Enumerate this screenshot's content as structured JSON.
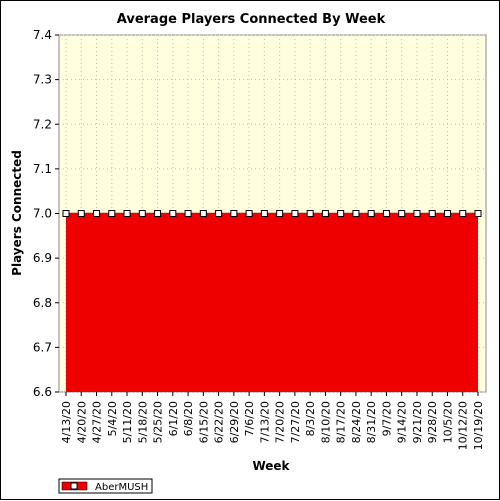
{
  "chart_data": {
    "type": "area",
    "title": "Average Players Connected By Week",
    "xlabel": "Week",
    "ylabel": "Players Connected",
    "ylim": [
      6.6,
      7.4
    ],
    "yticks": [
      "6.6",
      "6.7",
      "6.8",
      "6.9",
      "7.0",
      "7.1",
      "7.2",
      "7.3",
      "7.4"
    ],
    "grid": true,
    "legend_position": "bottom-left",
    "colors": {
      "plot_background": "#ffffe0",
      "fill": "#ee0000",
      "line": "#ee0000",
      "grid": "#bdbdbd"
    },
    "categories": [
      "4/13/20",
      "4/20/20",
      "4/27/20",
      "5/4/20",
      "5/11/20",
      "5/18/20",
      "5/25/20",
      "6/1/20",
      "6/8/20",
      "6/15/20",
      "6/22/20",
      "6/29/20",
      "7/6/20",
      "7/13/20",
      "7/20/20",
      "7/27/20",
      "8/3/20",
      "8/10/20",
      "8/17/20",
      "8/24/20",
      "8/31/20",
      "9/7/20",
      "9/14/20",
      "9/21/20",
      "9/28/20",
      "10/5/20",
      "10/12/20",
      "10/19/20"
    ],
    "series": [
      {
        "name": "AberMUSH",
        "values": [
          7.0,
          7.0,
          7.0,
          7.0,
          7.0,
          7.0,
          7.0,
          7.0,
          7.0,
          7.0,
          7.0,
          7.0,
          7.0,
          7.0,
          7.0,
          7.0,
          7.0,
          7.0,
          7.0,
          7.0,
          7.0,
          7.0,
          7.0,
          7.0,
          7.0,
          7.0,
          7.0,
          7.0
        ]
      }
    ]
  }
}
